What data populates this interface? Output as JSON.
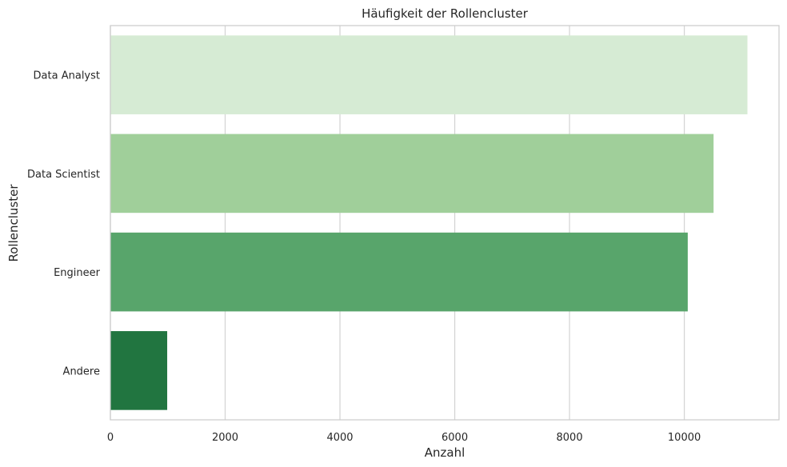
{
  "chart_data": {
    "type": "bar",
    "orientation": "horizontal",
    "title": "Häufigkeit der Rollencluster",
    "xlabel": "Anzahl",
    "ylabel": "Rollencluster",
    "categories": [
      "Data Analyst",
      "Data Scientist",
      "Engineer",
      "Andere"
    ],
    "values": [
      11100,
      10510,
      10060,
      990
    ],
    "colors": [
      "#d6ebd4",
      "#a0cf9a",
      "#58a56b",
      "#217540"
    ],
    "xlim": [
      0,
      11650
    ],
    "xticks": [
      0,
      2000,
      4000,
      6000,
      8000,
      10000
    ],
    "grid": true,
    "legend": "none"
  }
}
